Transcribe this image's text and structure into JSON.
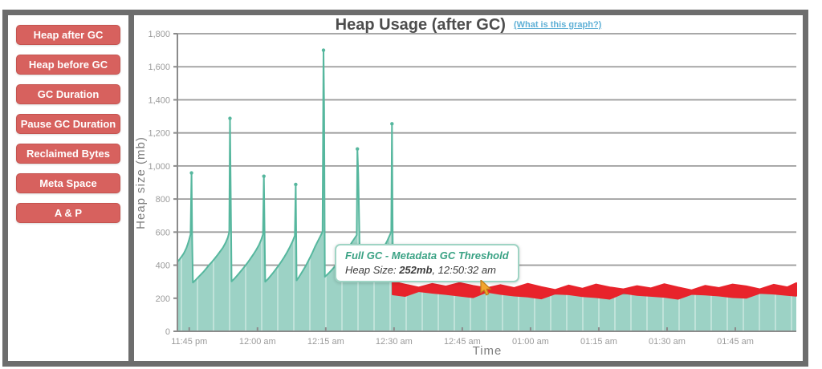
{
  "sidebar": {
    "buttons": [
      {
        "label": "Heap after GC"
      },
      {
        "label": "Heap before GC"
      },
      {
        "label": "GC Duration"
      },
      {
        "label": "Pause GC Duration"
      },
      {
        "label": "Reclaimed Bytes"
      },
      {
        "label": "Meta Space"
      },
      {
        "label": "A & P"
      }
    ]
  },
  "chart": {
    "title": "Heap Usage (after GC)",
    "help_link": "(What is this graph?)",
    "y_axis_label": "Heap size (mb)",
    "x_axis_label": "Time"
  },
  "tooltip": {
    "title": "Full GC - Metadata GC Threshold",
    "size_label": "Heap Size: ",
    "size_value": "252mb",
    "time_suffix": ", 12:50:32 am"
  },
  "colors": {
    "frame_gray": "#6d6d6d",
    "button_red": "#d7615e",
    "link_blue": "#5fb0d6",
    "teal_line": "#56b79e",
    "teal_fill": "#9cd2c5",
    "highlight_red": "#e8232b",
    "grid_gray": "#9c9c9c"
  },
  "chart_data": {
    "type": "area",
    "title": "Heap Usage (after GC)",
    "xlabel": "Time",
    "ylabel": "Heap size (mb)",
    "ylim": [
      0,
      1800
    ],
    "grid": true,
    "legend": "none",
    "x_max": 136,
    "x_unit": "minutes from ~11:42 pm",
    "yticks": [
      {
        "v": 0,
        "label": "0"
      },
      {
        "v": 200,
        "label": "200"
      },
      {
        "v": 400,
        "label": "400"
      },
      {
        "v": 600,
        "label": "600"
      },
      {
        "v": 800,
        "label": "800"
      },
      {
        "v": 1000,
        "label": "1,000"
      },
      {
        "v": 1200,
        "label": "1,200"
      },
      {
        "v": 1400,
        "label": "1,400"
      },
      {
        "v": 1600,
        "label": "1,600"
      },
      {
        "v": 1800,
        "label": "1,800"
      }
    ],
    "xticks": [
      {
        "t": 2.6,
        "label": "11:45 pm"
      },
      {
        "t": 17.6,
        "label": "12:00 am"
      },
      {
        "t": 32.6,
        "label": "12:15 am"
      },
      {
        "t": 47.6,
        "label": "12:30 am"
      },
      {
        "t": 62.6,
        "label": "12:45 am"
      },
      {
        "t": 77.6,
        "label": "01:00 am"
      },
      {
        "t": 92.6,
        "label": "01:15 am"
      },
      {
        "t": 107.6,
        "label": "01:30 am"
      },
      {
        "t": 122.6,
        "label": "01:45 am"
      }
    ],
    "series": [
      {
        "name": "Heap after GC",
        "type": "area",
        "color": "#56b79e",
        "fill": "#9cd2c5",
        "points": [
          [
            0,
            420
          ],
          [
            0.4,
            433
          ],
          [
            0.8,
            447
          ],
          [
            1.1,
            459
          ],
          [
            1.4,
            471
          ],
          [
            1.7,
            487
          ],
          [
            2.0,
            505
          ],
          [
            2.3,
            529
          ],
          [
            2.6,
            556
          ],
          [
            2.9,
            586
          ],
          [
            3.1,
            958
          ],
          [
            3.25,
            552
          ],
          [
            3.4,
            295
          ],
          [
            4.0,
            310
          ],
          [
            4.6,
            328
          ],
          [
            5.2,
            345
          ],
          [
            5.8,
            362
          ],
          [
            6.4,
            382
          ],
          [
            7.0,
            402
          ],
          [
            7.6,
            420
          ],
          [
            8.2,
            440
          ],
          [
            8.8,
            461
          ],
          [
            9.4,
            483
          ],
          [
            10.0,
            506
          ],
          [
            10.6,
            536
          ],
          [
            11.1,
            568
          ],
          [
            11.4,
            601
          ],
          [
            11.55,
            1288
          ],
          [
            11.7,
            905
          ],
          [
            11.9,
            302
          ],
          [
            12.5,
            318
          ],
          [
            13.1,
            336
          ],
          [
            13.7,
            356
          ],
          [
            14.3,
            376
          ],
          [
            14.9,
            396
          ],
          [
            15.5,
            418
          ],
          [
            16.1,
            442
          ],
          [
            16.7,
            466
          ],
          [
            17.3,
            492
          ],
          [
            17.9,
            521
          ],
          [
            18.4,
            552
          ],
          [
            18.8,
            586
          ],
          [
            19.0,
            938
          ],
          [
            19.1,
            716
          ],
          [
            19.3,
            300
          ],
          [
            19.9,
            316
          ],
          [
            20.5,
            336
          ],
          [
            21.1,
            356
          ],
          [
            21.7,
            378
          ],
          [
            22.3,
            400
          ],
          [
            22.9,
            424
          ],
          [
            23.5,
            450
          ],
          [
            24.1,
            478
          ],
          [
            24.7,
            509
          ],
          [
            25.3,
            543
          ],
          [
            25.8,
            579
          ],
          [
            26.0,
            888
          ],
          [
            26.2,
            308
          ],
          [
            26.7,
            328
          ],
          [
            27.2,
            350
          ],
          [
            27.7,
            372
          ],
          [
            28.2,
            396
          ],
          [
            28.7,
            422
          ],
          [
            29.2,
            449
          ],
          [
            29.7,
            478
          ],
          [
            30.2,
            509
          ],
          [
            30.8,
            542
          ],
          [
            31.4,
            574
          ],
          [
            31.9,
            602
          ],
          [
            32.1,
            1700
          ],
          [
            32.25,
            1345
          ],
          [
            32.4,
            330
          ],
          [
            33.0,
            345
          ],
          [
            33.6,
            362
          ],
          [
            34.2,
            380
          ],
          [
            34.8,
            400
          ],
          [
            35.4,
            420
          ],
          [
            36.0,
            442
          ],
          [
            36.6,
            464
          ],
          [
            37.2,
            488
          ],
          [
            37.8,
            514
          ],
          [
            38.4,
            541
          ],
          [
            39.0,
            565
          ],
          [
            39.4,
            582
          ],
          [
            39.55,
            1103
          ],
          [
            39.75,
            952
          ],
          [
            39.95,
            645
          ],
          [
            40.15,
            300
          ],
          [
            40.7,
            318
          ],
          [
            41.3,
            340
          ],
          [
            41.9,
            362
          ],
          [
            42.5,
            385
          ],
          [
            43.1,
            408
          ],
          [
            43.7,
            432
          ],
          [
            44.3,
            458
          ],
          [
            44.9,
            486
          ],
          [
            45.5,
            515
          ],
          [
            46.1,
            546
          ],
          [
            46.6,
            577
          ],
          [
            47.0,
            602
          ],
          [
            47.15,
            1255
          ],
          [
            47.35,
            420
          ],
          [
            47.6,
            260
          ],
          [
            48.5,
            254
          ],
          [
            50,
            251
          ],
          [
            52,
            249
          ],
          [
            54,
            251
          ],
          [
            56,
            247
          ],
          [
            58,
            245
          ],
          [
            60,
            247
          ],
          [
            62,
            243
          ],
          [
            64,
            241
          ],
          [
            66,
            243
          ],
          [
            68,
            239
          ],
          [
            70,
            237
          ],
          [
            72,
            239
          ],
          [
            74,
            235
          ],
          [
            76,
            233
          ],
          [
            78,
            235
          ],
          [
            80,
            231
          ],
          [
            82,
            233
          ],
          [
            84,
            229
          ],
          [
            86,
            231
          ],
          [
            88,
            229
          ],
          [
            90,
            231
          ],
          [
            92,
            227
          ],
          [
            94,
            229
          ],
          [
            96,
            231
          ],
          [
            98,
            227
          ],
          [
            100,
            229
          ],
          [
            102,
            231
          ],
          [
            104,
            229
          ],
          [
            106,
            231
          ],
          [
            108,
            227
          ],
          [
            110,
            229
          ],
          [
            112,
            231
          ],
          [
            114,
            227
          ],
          [
            116,
            229
          ],
          [
            118,
            231
          ],
          [
            120,
            229
          ],
          [
            122,
            231
          ],
          [
            124,
            233
          ],
          [
            126,
            231
          ],
          [
            128,
            233
          ],
          [
            130,
            231
          ],
          [
            132,
            233
          ],
          [
            134,
            231
          ],
          [
            136,
            233
          ]
        ]
      },
      {
        "name": "Full GC - Metadata GC Threshold",
        "type": "highlight-band",
        "color": "#e8232b",
        "band_halfwidth_mb": 27,
        "points": [
          [
            47.3,
            258
          ],
          [
            50,
            256
          ],
          [
            53,
            254
          ],
          [
            56,
            252
          ],
          [
            59,
            252
          ],
          [
            62,
            250
          ],
          [
            65,
            248
          ],
          [
            68,
            250
          ],
          [
            71,
            245
          ],
          [
            74,
            243
          ],
          [
            77,
            245
          ],
          [
            80,
            241
          ],
          [
            83,
            239
          ],
          [
            86,
            243
          ],
          [
            89,
            239
          ],
          [
            92,
            241
          ],
          [
            95,
            239
          ],
          [
            98,
            243
          ],
          [
            101,
            239
          ],
          [
            104,
            241
          ],
          [
            107,
            243
          ],
          [
            110,
            239
          ],
          [
            113,
            237
          ],
          [
            116,
            241
          ],
          [
            119,
            243
          ],
          [
            122,
            241
          ],
          [
            125,
            245
          ],
          [
            128,
            243
          ],
          [
            131,
            247
          ],
          [
            134,
            247
          ],
          [
            136,
            249
          ]
        ]
      }
    ]
  }
}
